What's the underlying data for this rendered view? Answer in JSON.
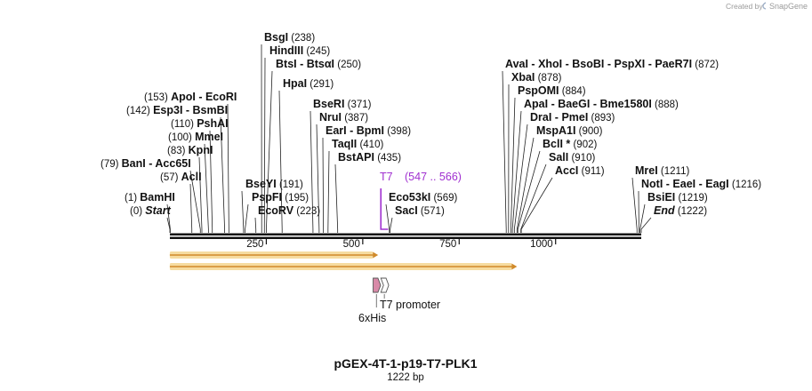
{
  "credit": {
    "created_by": "Created by",
    "brand": "SnapGene"
  },
  "plasmid": {
    "name": "pGEX-4T-1-p19-T7-PLK1",
    "length_label": "1222 bp",
    "length": 1222
  },
  "ruler": {
    "ticks": [
      250,
      500,
      750,
      1000
    ]
  },
  "sites": {
    "left": [
      {
        "segments": [
          "BamHI"
        ],
        "pos_text": "(1)",
        "pos": 1
      },
      {
        "segments": [
          "Start"
        ],
        "pos_text": "(0)",
        "pos": 0,
        "italic": true
      },
      {
        "segments": [
          "BanI",
          "Acc65I"
        ],
        "pos_text": "(79)",
        "pos": 79
      },
      {
        "segments": [
          "AclI"
        ],
        "pos_text": "(57)",
        "pos": 57
      },
      {
        "segments": [
          "KpnI"
        ],
        "pos_text": "(83)",
        "pos": 83
      },
      {
        "segments": [
          "MmeI"
        ],
        "pos_text": "(100)",
        "pos": 100
      },
      {
        "segments": [
          "PshAI"
        ],
        "pos_text": "(110)",
        "pos": 110
      },
      {
        "segments": [
          "Esp3I",
          "BsmBI"
        ],
        "pos_text": "(142)",
        "pos": 142
      },
      {
        "segments": [
          "ApoI",
          "EcoRI"
        ],
        "pos_text": "(153)",
        "pos": 153
      }
    ],
    "right": [
      {
        "segments": [
          "BsgI"
        ],
        "pos_text": "(238)",
        "pos": 238
      },
      {
        "segments": [
          "HindIII"
        ],
        "pos_text": "(245)",
        "pos": 245
      },
      {
        "segments": [
          "BtsI",
          "BtsαI"
        ],
        "pos_text": "(250)",
        "pos": 250
      },
      {
        "segments": [
          "HpaI"
        ],
        "pos_text": "(291)",
        "pos": 291
      },
      {
        "segments": [
          "BseYI"
        ],
        "pos_text": "(191)",
        "pos": 191
      },
      {
        "segments": [
          "PspFI"
        ],
        "pos_text": "(195)",
        "pos": 195
      },
      {
        "segments": [
          "EcoRV"
        ],
        "pos_text": "(223)",
        "pos": 223
      },
      {
        "segments": [
          "BseRI"
        ],
        "pos_text": "(371)",
        "pos": 371
      },
      {
        "segments": [
          "NruI"
        ],
        "pos_text": "(387)",
        "pos": 387
      },
      {
        "segments": [
          "EarI",
          "BpmI"
        ],
        "pos_text": "(398)",
        "pos": 398
      },
      {
        "segments": [
          "TaqII"
        ],
        "pos_text": "(410)",
        "pos": 410
      },
      {
        "segments": [
          "BstAPI"
        ],
        "pos_text": "(435)",
        "pos": 435
      },
      {
        "segments": [
          "Eco53kI"
        ],
        "pos_text": "(569)",
        "pos": 569
      },
      {
        "segments": [
          "SacI"
        ],
        "pos_text": "(571)",
        "pos": 571
      },
      {
        "segments": [
          "AvaI",
          "XhoI",
          "BsoBI",
          "PspXI",
          "PaeR7I"
        ],
        "pos_text": "(872)",
        "pos": 872
      },
      {
        "segments": [
          "XbaI"
        ],
        "pos_text": "(878)",
        "pos": 878
      },
      {
        "segments": [
          "PspOMI"
        ],
        "pos_text": "(884)",
        "pos": 884
      },
      {
        "segments": [
          "ApaI",
          "BaeGI",
          "Bme1580I"
        ],
        "pos_text": "(888)",
        "pos": 888
      },
      {
        "segments": [
          "DraI",
          "PmeI"
        ],
        "pos_text": "(893)",
        "pos": 893
      },
      {
        "segments": [
          "MspA1I"
        ],
        "pos_text": "(900)",
        "pos": 900
      },
      {
        "segments": [
          "BclI *"
        ],
        "pos_text": "(902)",
        "pos": 902
      },
      {
        "segments": [
          "SalI"
        ],
        "pos_text": "(910)",
        "pos": 910
      },
      {
        "segments": [
          "AccI"
        ],
        "pos_text": "(911)",
        "pos": 911
      },
      {
        "segments": [
          "MreI"
        ],
        "pos_text": "(1211)",
        "pos": 1211
      },
      {
        "segments": [
          "NotI",
          "EaeI",
          "EagI"
        ],
        "pos_text": "(1216)",
        "pos": 1216
      },
      {
        "segments": [
          "BsiEI"
        ],
        "pos_text": "(1219)",
        "pos": 1219
      },
      {
        "segments": [
          "End"
        ],
        "pos_text": "(1222)",
        "pos": 1222,
        "italic": true
      }
    ]
  },
  "primer": {
    "name": "T7",
    "range_text": "(547 .. 566)",
    "start": 547,
    "end": 566,
    "color": "#a030d0"
  },
  "orfs": [
    {
      "start": 1,
      "end": 540
    },
    {
      "start": 1,
      "end": 900
    }
  ],
  "features": [
    {
      "name": "6xHis",
      "start": 527,
      "end": 544,
      "color": "#d88aa8"
    },
    {
      "name": "T7 promoter",
      "start": 547,
      "end": 565,
      "color": "#ffffff"
    }
  ],
  "colors": {
    "orf_fill": "#f6dca0",
    "orf_line": "#d08a2a",
    "backbone": "#111111"
  }
}
